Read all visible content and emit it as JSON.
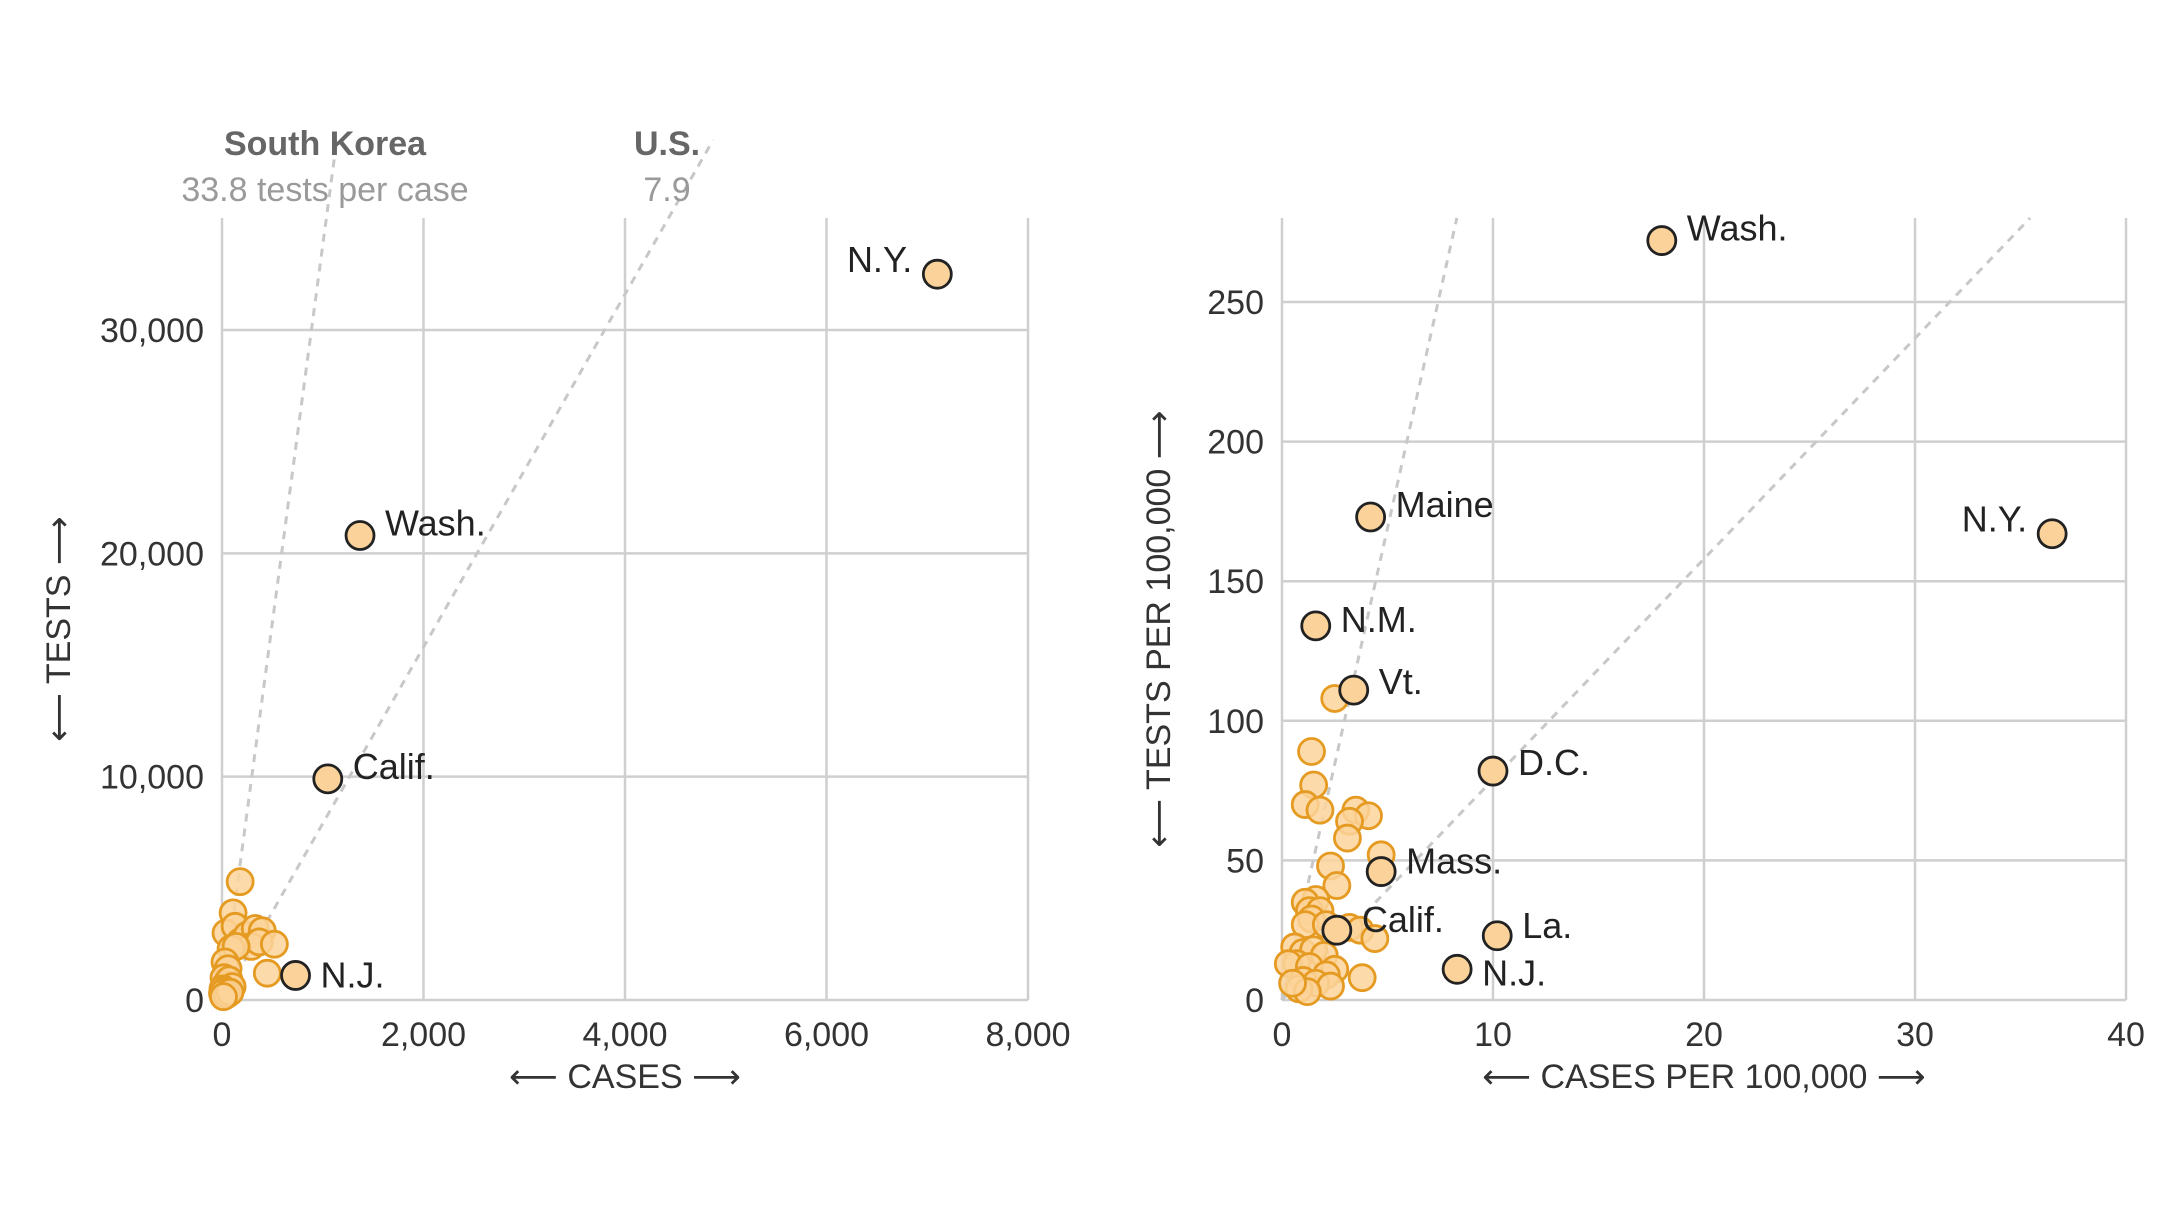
{
  "colors": {
    "point_fill": "#fbd39a",
    "point_stroke_background": "#e59a22",
    "point_stroke_labeled": "#222222",
    "grid": "#cfcfcf",
    "reference_line": "#c8c8c8"
  },
  "chart_data": [
    {
      "type": "scatter",
      "title": "",
      "xlabel": "⟵ CASES ⟶",
      "ylabel": "⟵ TESTS ⟶",
      "xlim": [
        0,
        8000
      ],
      "ylim": [
        0,
        30000
      ],
      "x_ticks": [
        "0",
        "2,000",
        "4,000",
        "6,000",
        "8,000"
      ],
      "y_ticks": [
        "0",
        "10,000",
        "20,000",
        "30,000"
      ],
      "grid": true,
      "reference_lines": [
        {
          "name": "South Korea",
          "subtitle": "33.8 tests per case",
          "slope": 33.8
        },
        {
          "name": "U.S.",
          "subtitle": "7.9",
          "slope": 7.9
        }
      ],
      "labeled_points": [
        {
          "label": "N.Y.",
          "x": 7100,
          "y": 32500
        },
        {
          "label": "Wash.",
          "x": 1370,
          "y": 20800
        },
        {
          "label": "Calif.",
          "x": 1050,
          "y": 9900
        },
        {
          "label": "N.J.",
          "x": 730,
          "y": 1100
        }
      ],
      "points": [
        [
          180,
          5300
        ],
        [
          110,
          3900
        ],
        [
          40,
          3000
        ],
        [
          130,
          3300
        ],
        [
          180,
          2600
        ],
        [
          250,
          2900
        ],
        [
          330,
          3200
        ],
        [
          400,
          3100
        ],
        [
          290,
          2400
        ],
        [
          370,
          2600
        ],
        [
          520,
          2500
        ],
        [
          450,
          1200
        ],
        [
          90,
          2300
        ],
        [
          140,
          2400
        ],
        [
          30,
          1700
        ],
        [
          60,
          1400
        ],
        [
          20,
          1000
        ],
        [
          40,
          700
        ],
        [
          70,
          900
        ],
        [
          100,
          600
        ],
        [
          10,
          500
        ],
        [
          30,
          400
        ],
        [
          5,
          300
        ],
        [
          50,
          250
        ],
        [
          80,
          350
        ],
        [
          15,
          150
        ]
      ]
    },
    {
      "type": "scatter",
      "title": "",
      "xlabel": "⟵ CASES PER 100,000 ⟶",
      "ylabel": "⟵ TESTS PER 100,000 ⟶",
      "xlim": [
        0,
        40
      ],
      "ylim": [
        0,
        250
      ],
      "x_ticks": [
        "0",
        "10",
        "20",
        "30",
        "40"
      ],
      "y_ticks": [
        "0",
        "50",
        "100",
        "150",
        "200",
        "250"
      ],
      "grid": true,
      "reference_lines": [
        {
          "name": "South Korea",
          "slope": 33.8
        },
        {
          "name": "U.S.",
          "slope": 7.9
        }
      ],
      "labeled_points": [
        {
          "label": "Wash.",
          "x": 18.0,
          "y": 272
        },
        {
          "label": "N.Y.",
          "x": 36.5,
          "y": 167
        },
        {
          "label": "Maine",
          "x": 4.2,
          "y": 173
        },
        {
          "label": "N.M.",
          "x": 1.6,
          "y": 134
        },
        {
          "label": "Vt.",
          "x": 3.4,
          "y": 111
        },
        {
          "label": "D.C.",
          "x": 10.0,
          "y": 82
        },
        {
          "label": "Mass.",
          "x": 4.7,
          "y": 46
        },
        {
          "label": "Calif.",
          "x": 2.6,
          "y": 25
        },
        {
          "label": "La.",
          "x": 10.2,
          "y": 23
        },
        {
          "label": "N.J.",
          "x": 8.3,
          "y": 11
        }
      ],
      "points": [
        [
          2.5,
          108
        ],
        [
          1.4,
          89
        ],
        [
          1.5,
          77
        ],
        [
          1.1,
          70
        ],
        [
          1.8,
          68
        ],
        [
          3.5,
          68
        ],
        [
          4.1,
          66
        ],
        [
          3.2,
          64
        ],
        [
          3.1,
          58
        ],
        [
          4.7,
          52
        ],
        [
          2.3,
          48
        ],
        [
          2.6,
          41
        ],
        [
          1.6,
          36
        ],
        [
          1.1,
          35
        ],
        [
          1.3,
          32
        ],
        [
          1.8,
          32
        ],
        [
          1.4,
          29
        ],
        [
          1.1,
          27
        ],
        [
          2.1,
          27
        ],
        [
          3.2,
          26
        ],
        [
          3.7,
          25
        ],
        [
          4.4,
          22
        ],
        [
          0.6,
          19
        ],
        [
          1.0,
          17
        ],
        [
          1.5,
          18
        ],
        [
          2.0,
          16
        ],
        [
          0.7,
          13
        ],
        [
          0.3,
          13
        ],
        [
          1.3,
          12
        ],
        [
          2.5,
          11
        ],
        [
          2.1,
          9
        ],
        [
          3.8,
          8
        ],
        [
          1.0,
          7
        ],
        [
          1.6,
          6
        ],
        [
          2.3,
          5
        ],
        [
          0.8,
          4
        ],
        [
          1.2,
          3
        ],
        [
          0.5,
          6
        ]
      ]
    }
  ]
}
